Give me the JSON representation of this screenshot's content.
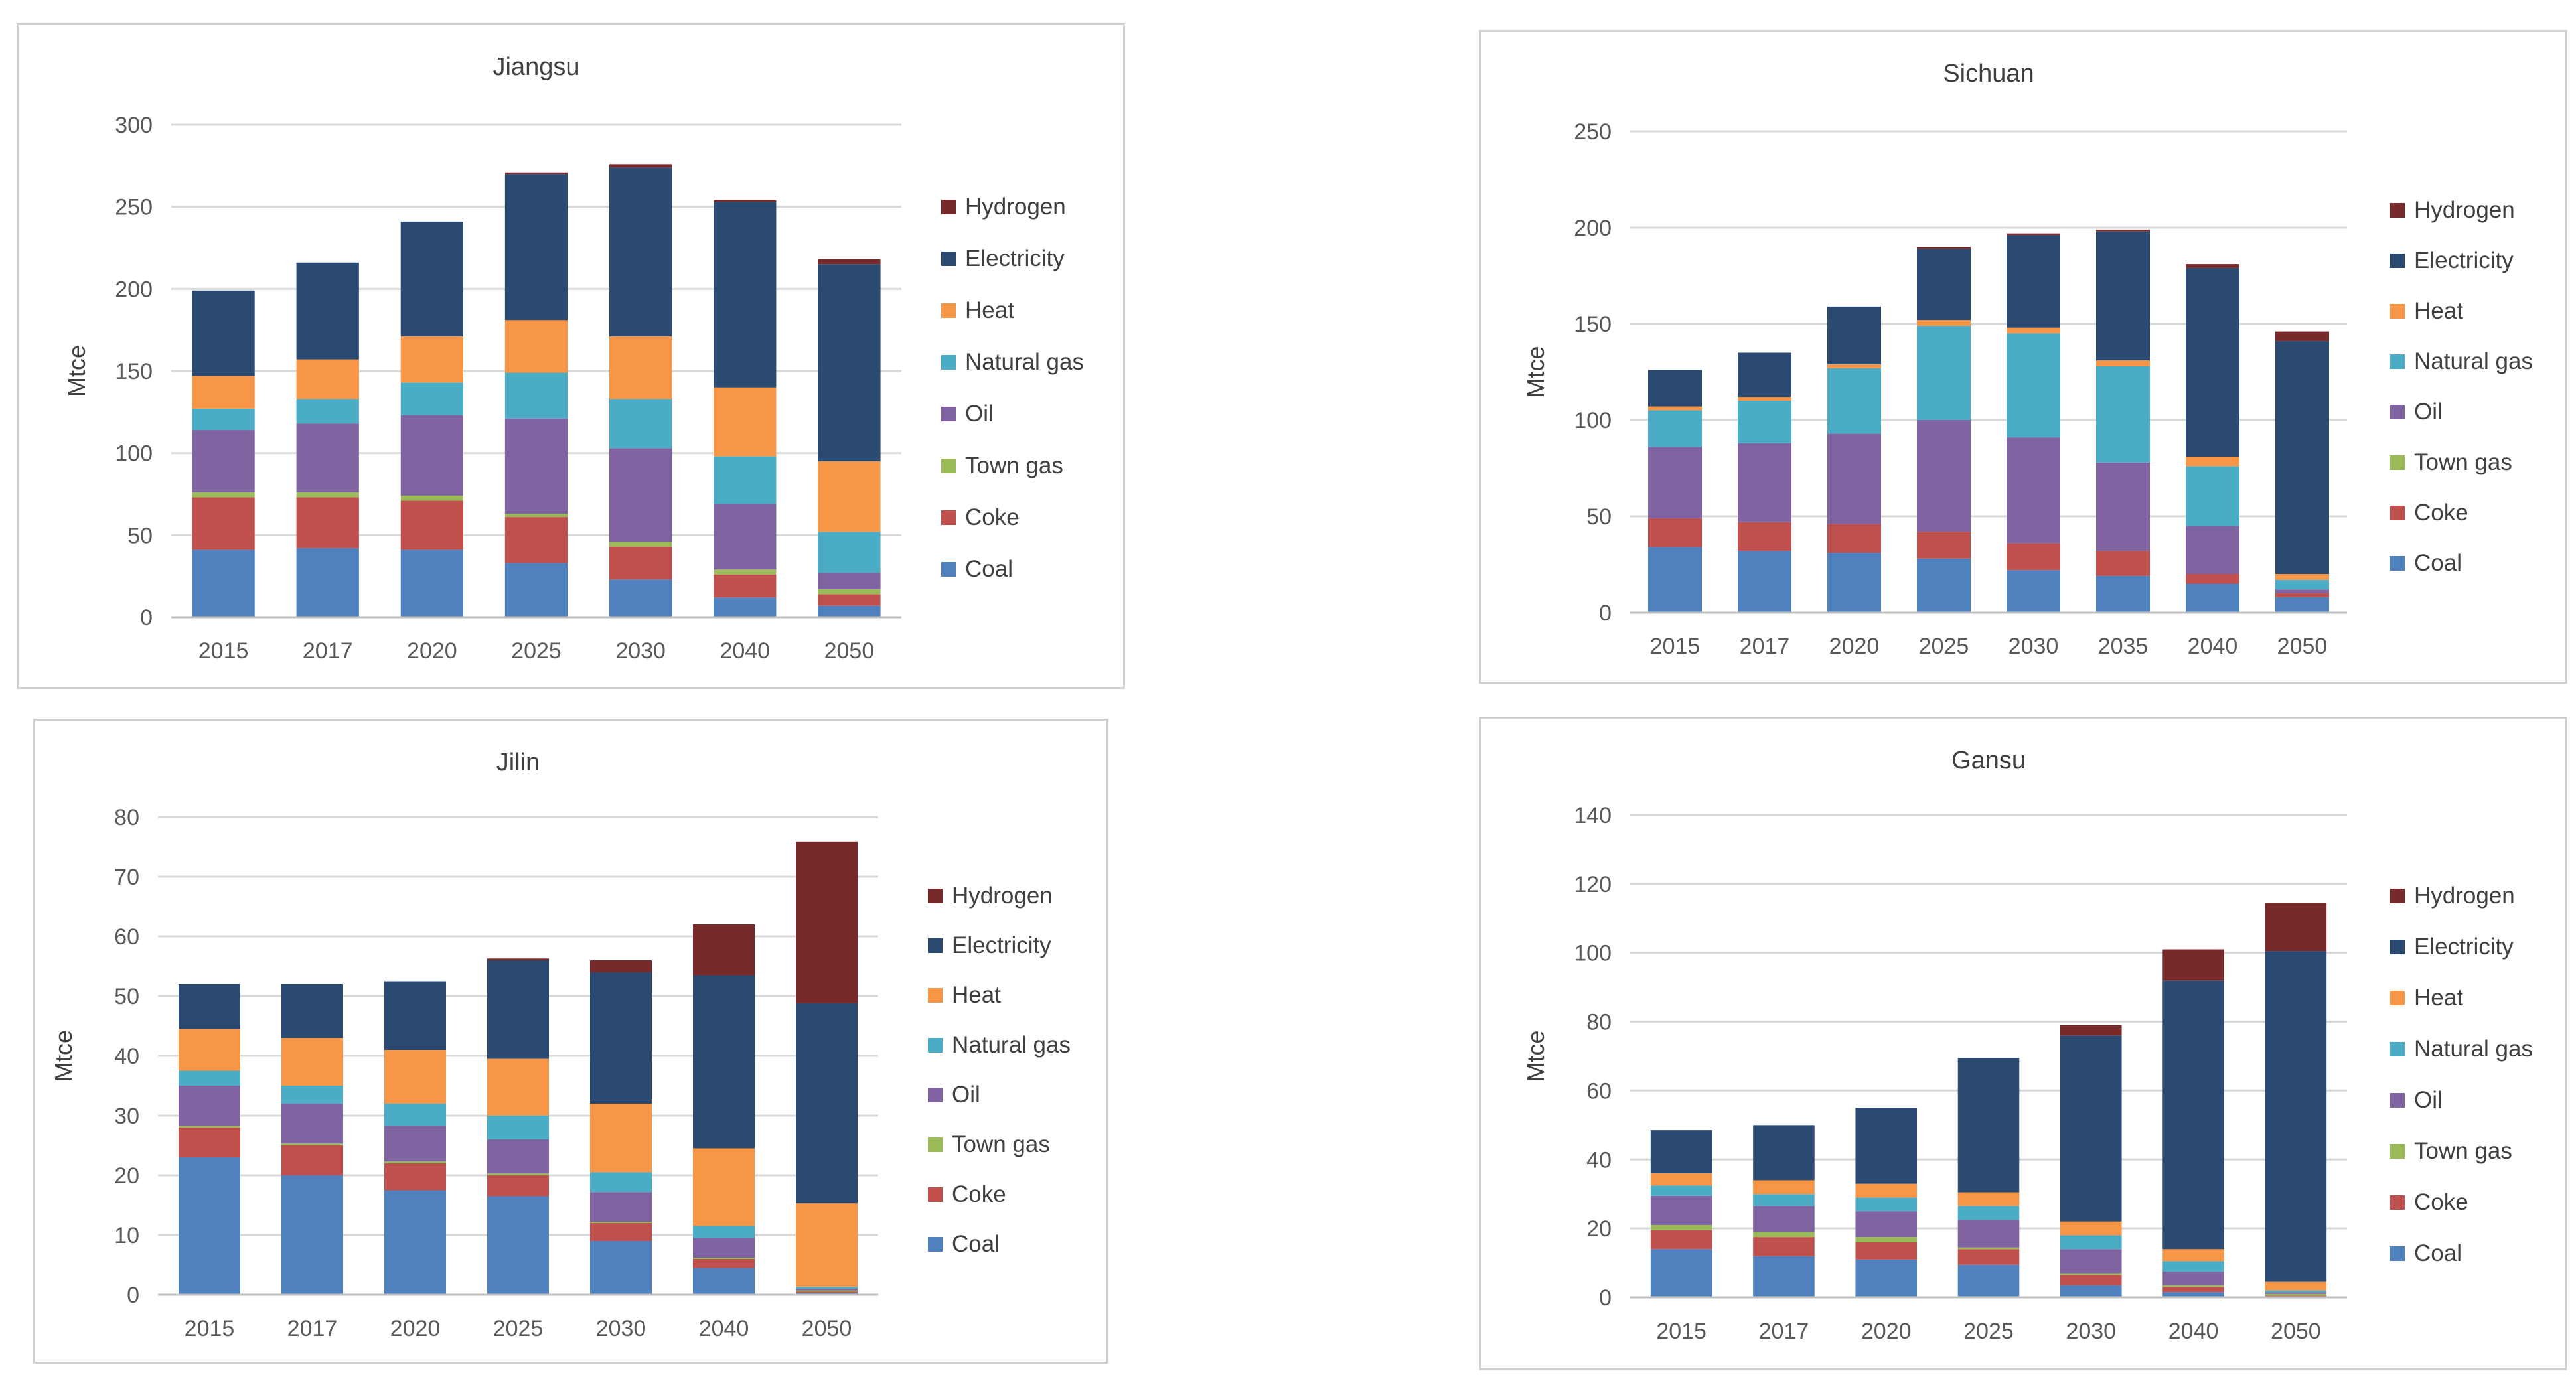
{
  "colors": {
    "Coal": "#4e81bd",
    "Coke": "#c0504d",
    "Town gas": "#9bbb59",
    "Oil": "#8064a2",
    "Natural gas": "#4bacc6",
    "Heat": "#f79646",
    "Electricity": "#2a4a72",
    "Hydrogen": "#772a29"
  },
  "chart_data": [
    {
      "type": "bar",
      "stacked": true,
      "title": "Jiangsu",
      "ylabel": "Mtce",
      "xlabel": "",
      "ylim": [
        0,
        300
      ],
      "ticks": [
        0,
        50,
        100,
        150,
        200,
        250,
        300
      ],
      "categories": [
        "2015",
        "2017",
        "2020",
        "2025",
        "2030",
        "2040",
        "2050"
      ],
      "legend_position": "right",
      "series": [
        {
          "name": "Coal",
          "values": [
            41,
            42,
            41,
            33,
            23,
            12,
            7
          ]
        },
        {
          "name": "Coke",
          "values": [
            32,
            31,
            30,
            28,
            20,
            14,
            7
          ]
        },
        {
          "name": "Town gas",
          "values": [
            3,
            3,
            3,
            2,
            3,
            3,
            3
          ]
        },
        {
          "name": "Oil",
          "values": [
            38,
            42,
            49,
            58,
            57,
            40,
            10
          ]
        },
        {
          "name": "Natural gas",
          "values": [
            13,
            15,
            20,
            28,
            30,
            29,
            25
          ]
        },
        {
          "name": "Heat",
          "values": [
            20,
            24,
            28,
            32,
            38,
            42,
            43
          ]
        },
        {
          "name": "Electricity",
          "values": [
            52,
            59,
            70,
            89,
            103,
            113,
            120
          ]
        },
        {
          "name": "Hydrogen",
          "values": [
            0,
            0,
            0,
            1,
            2,
            1,
            3
          ]
        }
      ]
    },
    {
      "type": "bar",
      "stacked": true,
      "title": "Sichuan",
      "ylabel": "Mtce",
      "xlabel": "",
      "ylim": [
        0,
        250
      ],
      "ticks": [
        0,
        50,
        100,
        150,
        200,
        250
      ],
      "categories": [
        "2015",
        "2017",
        "2020",
        "2025",
        "2030",
        "2035",
        "2040",
        "2050"
      ],
      "legend_position": "right",
      "series": [
        {
          "name": "Coal",
          "values": [
            34,
            32,
            31,
            28,
            22,
            19,
            15,
            8
          ]
        },
        {
          "name": "Coke",
          "values": [
            15,
            15,
            15,
            14,
            14,
            13,
            5,
            2
          ]
        },
        {
          "name": "Town gas",
          "values": [
            0,
            0,
            0,
            0,
            0,
            0,
            0,
            0
          ]
        },
        {
          "name": "Oil",
          "values": [
            37,
            41,
            47,
            58,
            55,
            46,
            25,
            2
          ]
        },
        {
          "name": "Natural gas",
          "values": [
            19,
            22,
            34,
            49,
            54,
            50,
            31,
            5
          ]
        },
        {
          "name": "Heat",
          "values": [
            2,
            2,
            2,
            3,
            3,
            3,
            5,
            3
          ]
        },
        {
          "name": "Electricity",
          "values": [
            19,
            23,
            30,
            37,
            48,
            67,
            98,
            121
          ]
        },
        {
          "name": "Hydrogen",
          "values": [
            0,
            0,
            0,
            1,
            1,
            1,
            2,
            5
          ]
        }
      ]
    },
    {
      "type": "bar",
      "stacked": true,
      "title": "Jilin",
      "ylabel": "Mtce",
      "xlabel": "",
      "ylim": [
        0,
        80
      ],
      "ticks": [
        0,
        10,
        20,
        30,
        40,
        50,
        60,
        70,
        80
      ],
      "categories": [
        "2015",
        "2017",
        "2020",
        "2025",
        "2030",
        "2040",
        "2050"
      ],
      "legend_position": "right",
      "series": [
        {
          "name": "Coal",
          "values": [
            23,
            20,
            17.5,
            16.5,
            9,
            4.5,
            0.3
          ]
        },
        {
          "name": "Coke",
          "values": [
            5,
            5,
            4.5,
            3.5,
            3,
            1.5,
            0.2
          ]
        },
        {
          "name": "Town gas",
          "values": [
            0.3,
            0.3,
            0.3,
            0.3,
            0.2,
            0.2,
            0.2
          ]
        },
        {
          "name": "Oil",
          "values": [
            6.7,
            6.7,
            6,
            5.7,
            5,
            3.3,
            0.3
          ]
        },
        {
          "name": "Natural gas",
          "values": [
            2.5,
            3,
            3.7,
            4,
            3.3,
            2,
            0.3
          ]
        },
        {
          "name": "Heat",
          "values": [
            7,
            8,
            9,
            9.5,
            11.5,
            13,
            14
          ]
        },
        {
          "name": "Electricity",
          "values": [
            7.5,
            9,
            11.5,
            16.5,
            22,
            29,
            33.5
          ]
        },
        {
          "name": "Hydrogen",
          "values": [
            0,
            0,
            0,
            0.3,
            2,
            8.5,
            27
          ]
        }
      ]
    },
    {
      "type": "bar",
      "stacked": true,
      "title": "Gansu",
      "ylabel": "Mtce",
      "xlabel": "",
      "ylim": [
        0,
        140
      ],
      "ticks": [
        0,
        20,
        40,
        60,
        80,
        100,
        120,
        140
      ],
      "categories": [
        "2015",
        "2017",
        "2020",
        "2025",
        "2030",
        "2040",
        "2050"
      ],
      "legend_position": "right",
      "series": [
        {
          "name": "Coal",
          "values": [
            14,
            12,
            11,
            9.5,
            3.5,
            1.5,
            0.3
          ]
        },
        {
          "name": "Coke",
          "values": [
            5.5,
            5.5,
            5,
            4.5,
            3,
            1.5,
            0.2
          ]
        },
        {
          "name": "Town gas",
          "values": [
            1.5,
            1.5,
            1.5,
            0.5,
            0.5,
            0.5,
            0.5
          ]
        },
        {
          "name": "Oil",
          "values": [
            8.5,
            7.5,
            7.5,
            8,
            7,
            4,
            0.5
          ]
        },
        {
          "name": "Natural gas",
          "values": [
            3,
            3.5,
            4,
            4,
            4,
            3,
            0.5
          ]
        },
        {
          "name": "Heat",
          "values": [
            3.5,
            4,
            4,
            4,
            4,
            3.5,
            2.5
          ]
        },
        {
          "name": "Electricity",
          "values": [
            12.5,
            16,
            22,
            39,
            54,
            78,
            96
          ]
        },
        {
          "name": "Hydrogen",
          "values": [
            0,
            0,
            0,
            0,
            3,
            9,
            14
          ]
        }
      ]
    }
  ]
}
